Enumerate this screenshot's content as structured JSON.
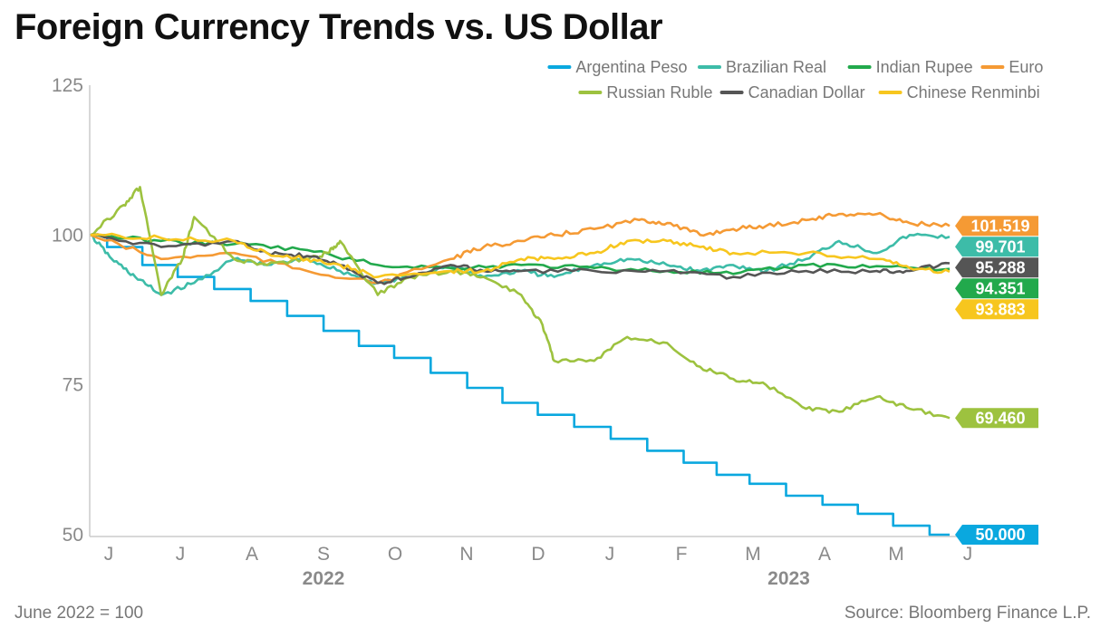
{
  "title": "Foreign Currency Trends vs. US Dollar",
  "note": "June 2022 = 100",
  "source": "Source: Bloomberg Finance L.P.",
  "chart_data": {
    "type": "line",
    "x_start": "2022-06-01",
    "x_end": "2023-06-01",
    "ylim": [
      50,
      125
    ],
    "yticks": [
      50,
      75,
      100,
      125
    ],
    "month_ticks": [
      "J",
      "J",
      "A",
      "S",
      "O",
      "N",
      "D",
      "J",
      "F",
      "M",
      "A",
      "M",
      "J"
    ],
    "years": [
      {
        "label": "2022",
        "month_index": 3
      },
      {
        "label": "2023",
        "month_index": 9.5
      }
    ],
    "grid": false,
    "legend_position": "top-right",
    "series": [
      {
        "name": "Argentina Peso",
        "color": "#0aa8df",
        "end_label": "50.000",
        "points": [
          [
            "2022-06-01",
            100
          ],
          [
            "2022-06-15",
            98
          ],
          [
            "2022-07-01",
            95
          ],
          [
            "2022-07-15",
            93
          ],
          [
            "2022-08-01",
            91
          ],
          [
            "2022-08-15",
            89
          ],
          [
            "2022-09-01",
            86.5
          ],
          [
            "2022-09-15",
            84
          ],
          [
            "2022-10-01",
            81.5
          ],
          [
            "2022-10-15",
            79.5
          ],
          [
            "2022-11-01",
            77
          ],
          [
            "2022-11-15",
            74.5
          ],
          [
            "2022-12-01",
            72
          ],
          [
            "2022-12-15",
            70
          ],
          [
            "2023-01-01",
            68
          ],
          [
            "2023-01-15",
            66
          ],
          [
            "2023-02-01",
            64
          ],
          [
            "2023-02-15",
            62
          ],
          [
            "2023-03-01",
            60
          ],
          [
            "2023-03-15",
            58.5
          ],
          [
            "2023-04-01",
            56.5
          ],
          [
            "2023-04-15",
            55
          ],
          [
            "2023-05-01",
            53.5
          ],
          [
            "2023-05-15",
            51.5
          ],
          [
            "2023-06-01",
            50
          ]
        ]
      },
      {
        "name": "Brazilian Real",
        "color": "#3dbca8",
        "end_label": "99.701",
        "points": [
          [
            "2022-06-01",
            100
          ],
          [
            "2022-06-10",
            96
          ],
          [
            "2022-06-20",
            93
          ],
          [
            "2022-07-01",
            90
          ],
          [
            "2022-07-15",
            92
          ],
          [
            "2022-08-01",
            96
          ],
          [
            "2022-08-15",
            95
          ],
          [
            "2022-09-01",
            96
          ],
          [
            "2022-09-15",
            94
          ],
          [
            "2022-10-01",
            92
          ],
          [
            "2022-10-15",
            93
          ],
          [
            "2022-11-01",
            95
          ],
          [
            "2022-11-15",
            93
          ],
          [
            "2022-12-01",
            94
          ],
          [
            "2022-12-15",
            93
          ],
          [
            "2023-01-01",
            95
          ],
          [
            "2023-01-15",
            96
          ],
          [
            "2023-02-01",
            95
          ],
          [
            "2023-02-15",
            94
          ],
          [
            "2023-03-01",
            95
          ],
          [
            "2023-03-15",
            94
          ],
          [
            "2023-04-01",
            96
          ],
          [
            "2023-04-15",
            99
          ],
          [
            "2023-05-01",
            97
          ],
          [
            "2023-05-15",
            100
          ],
          [
            "2023-06-01",
            99.701
          ]
        ]
      },
      {
        "name": "Indian Rupee",
        "color": "#22a94c",
        "end_label": "94.351",
        "points": [
          [
            "2022-06-01",
            100
          ],
          [
            "2022-07-01",
            99
          ],
          [
            "2022-08-01",
            98.5
          ],
          [
            "2022-09-01",
            97.5
          ],
          [
            "2022-10-01",
            95
          ],
          [
            "2022-11-01",
            94.5
          ],
          [
            "2022-12-01",
            95
          ],
          [
            "2023-01-01",
            94.5
          ],
          [
            "2023-02-01",
            94
          ],
          [
            "2023-03-01",
            93.5
          ],
          [
            "2023-04-01",
            95
          ],
          [
            "2023-05-01",
            94.8
          ],
          [
            "2023-06-01",
            94.351
          ]
        ]
      },
      {
        "name": "Euro",
        "color": "#f59a34",
        "end_label": "101.519",
        "points": [
          [
            "2022-06-01",
            100
          ],
          [
            "2022-07-01",
            96
          ],
          [
            "2022-08-01",
            97
          ],
          [
            "2022-09-01",
            94
          ],
          [
            "2022-10-01",
            92
          ],
          [
            "2022-11-01",
            96
          ],
          [
            "2022-11-15",
            98
          ],
          [
            "2022-12-01",
            99
          ],
          [
            "2022-12-15",
            100
          ],
          [
            "2023-01-01",
            101
          ],
          [
            "2023-01-20",
            102.5
          ],
          [
            "2023-02-01",
            102
          ],
          [
            "2023-02-15",
            100
          ],
          [
            "2023-03-01",
            101
          ],
          [
            "2023-03-15",
            101.5
          ],
          [
            "2023-04-01",
            102.5
          ],
          [
            "2023-04-15",
            103.5
          ],
          [
            "2023-05-01",
            103.5
          ],
          [
            "2023-05-15",
            102
          ],
          [
            "2023-06-01",
            101.519
          ]
        ]
      },
      {
        "name": "Russian Ruble",
        "color": "#9dc23f",
        "end_label": "69.460",
        "points": [
          [
            "2022-06-01",
            100
          ],
          [
            "2022-06-15",
            105
          ],
          [
            "2022-06-22",
            108
          ],
          [
            "2022-07-01",
            90
          ],
          [
            "2022-07-10",
            96
          ],
          [
            "2022-07-15",
            103
          ],
          [
            "2022-08-01",
            96
          ],
          [
            "2022-08-15",
            95
          ],
          [
            "2022-09-01",
            96
          ],
          [
            "2022-09-10",
            97
          ],
          [
            "2022-09-15",
            99
          ],
          [
            "2022-10-01",
            90
          ],
          [
            "2022-10-15",
            93
          ],
          [
            "2022-11-01",
            94
          ],
          [
            "2022-11-15",
            93
          ],
          [
            "2022-12-01",
            90
          ],
          [
            "2022-12-10",
            85
          ],
          [
            "2022-12-15",
            79
          ],
          [
            "2023-01-01",
            79
          ],
          [
            "2023-01-15",
            83
          ],
          [
            "2023-02-01",
            82
          ],
          [
            "2023-02-15",
            78
          ],
          [
            "2023-03-01",
            76
          ],
          [
            "2023-03-15",
            75
          ],
          [
            "2023-04-01",
            71
          ],
          [
            "2023-04-15",
            70.5
          ],
          [
            "2023-05-01",
            73
          ],
          [
            "2023-05-15",
            71
          ],
          [
            "2023-06-01",
            69.46
          ]
        ]
      },
      {
        "name": "Canadian Dollar",
        "color": "#555555",
        "end_label": "95.288",
        "points": [
          [
            "2022-06-01",
            100
          ],
          [
            "2022-07-01",
            98
          ],
          [
            "2022-08-01",
            99
          ],
          [
            "2022-08-15",
            97
          ],
          [
            "2022-09-01",
            96.5
          ],
          [
            "2022-09-15",
            95
          ],
          [
            "2022-10-01",
            92
          ],
          [
            "2022-10-15",
            93
          ],
          [
            "2022-11-01",
            95
          ],
          [
            "2022-11-15",
            94
          ],
          [
            "2022-12-01",
            94
          ],
          [
            "2023-01-01",
            94
          ],
          [
            "2023-02-01",
            94
          ],
          [
            "2023-03-01",
            93
          ],
          [
            "2023-04-01",
            94
          ],
          [
            "2023-05-01",
            94
          ],
          [
            "2023-05-15",
            94
          ],
          [
            "2023-06-01",
            95.288
          ]
        ]
      },
      {
        "name": "Chinese Renminbi",
        "color": "#f7c61e",
        "end_label": "93.883",
        "points": [
          [
            "2022-06-01",
            100
          ],
          [
            "2022-07-01",
            99.5
          ],
          [
            "2022-08-01",
            99
          ],
          [
            "2022-08-15",
            97
          ],
          [
            "2022-09-01",
            96
          ],
          [
            "2022-09-15",
            95
          ],
          [
            "2022-10-01",
            93
          ],
          [
            "2022-11-01",
            94
          ],
          [
            "2022-11-15",
            94
          ],
          [
            "2022-12-01",
            96
          ],
          [
            "2022-12-15",
            96
          ],
          [
            "2023-01-01",
            97
          ],
          [
            "2023-01-15",
            99
          ],
          [
            "2023-02-01",
            99
          ],
          [
            "2023-02-15",
            98
          ],
          [
            "2023-03-01",
            97
          ],
          [
            "2023-04-01",
            97
          ],
          [
            "2023-05-01",
            96
          ],
          [
            "2023-05-15",
            94.5
          ],
          [
            "2023-06-01",
            93.883
          ]
        ]
      }
    ]
  }
}
